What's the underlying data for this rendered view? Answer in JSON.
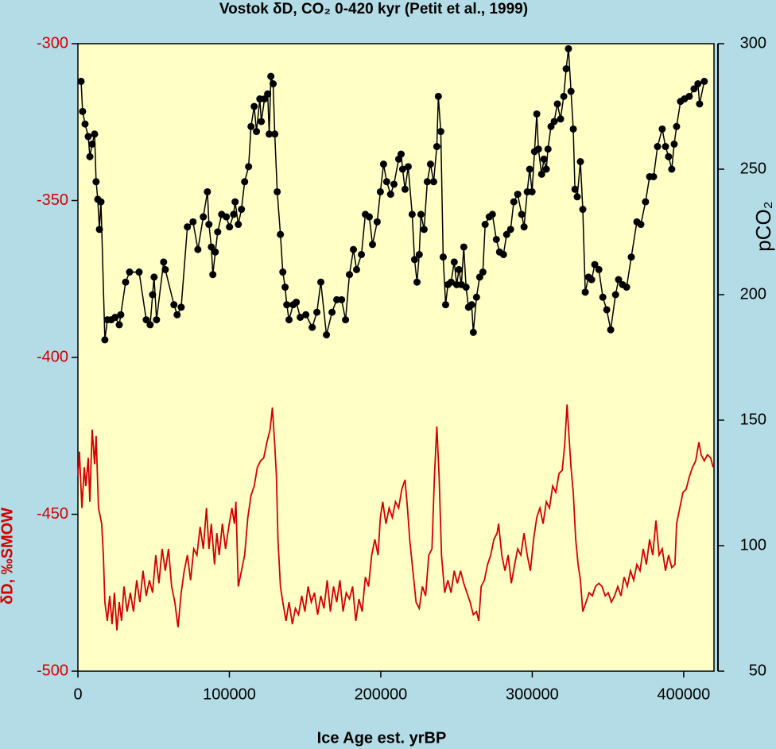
{
  "chart_data": {
    "type": "line",
    "title": "Vostok  δD, CO₂ 0-420 kyr (Petit et al., 1999)",
    "xlabel": "Ice Age est. yrBP",
    "ylabel": "δD, ‰SMOW",
    "y2label": "pCO₂",
    "xlim": [
      0,
      420000
    ],
    "xticks": [
      0,
      100000,
      200000,
      300000,
      400000
    ],
    "ylim": [
      -500,
      -300
    ],
    "yticks": [
      -500,
      -450,
      -400,
      -350,
      -300
    ],
    "y2lim": [
      50,
      300
    ],
    "y2ticks": [
      50,
      100,
      150,
      200,
      250,
      300
    ],
    "series": [
      {
        "color": "#d40000",
        "axis": "y",
        "marker": false,
        "x": [
          0,
          1000,
          2600,
          4200,
          5200,
          6800,
          7900,
          9400,
          11000,
          12000,
          13600,
          15700,
          16800,
          17800,
          19400,
          21000,
          22500,
          24100,
          25700,
          27300,
          28800,
          30400,
          32500,
          34600,
          36700,
          38800,
          40900,
          43000,
          45100,
          47200,
          49300,
          51400,
          53500,
          55600,
          57700,
          59800,
          61900,
          64000,
          66100,
          68200,
          70200,
          72300,
          74400,
          76500,
          78600,
          80700,
          82800,
          84900,
          86500,
          88100,
          90200,
          91700,
          93300,
          95400,
          97500,
          99600,
          101700,
          103300,
          104300,
          105900,
          108000,
          110100,
          112200,
          114300,
          116400,
          118500,
          120600,
          122700,
          124800,
          126900,
          128400,
          130000,
          131100,
          132100,
          133700,
          135300,
          137400,
          139400,
          141600,
          143600,
          145700,
          147800,
          149900,
          152000,
          154100,
          156200,
          158300,
          160400,
          162500,
          164600,
          166700,
          168800,
          170900,
          173000,
          175100,
          177200,
          179300,
          181400,
          183500,
          185600,
          187700,
          189800,
          191900,
          194000,
          196100,
          198200,
          199700,
          201300,
          203400,
          205500,
          207600,
          209700,
          211800,
          213900,
          216000,
          217600,
          219100,
          221200,
          223300,
          225400,
          227500,
          229600,
          231700,
          233800,
          235400,
          237000,
          238500,
          240100,
          242200,
          244300,
          246400,
          248500,
          250600,
          252700,
          254800,
          256900,
          259000,
          261100,
          263200,
          264700,
          266300,
          268400,
          270500,
          272600,
          274700,
          276800,
          277800,
          279900,
          282000,
          284100,
          286200,
          288400,
          290400,
          292500,
          294600,
          296700,
          298800,
          300900,
          303000,
          305100,
          307200,
          309300,
          311400,
          313500,
          315600,
          317700,
          319800,
          321400,
          323000,
          324000,
          325600,
          327100,
          328700,
          330300,
          331800,
          333400,
          335500,
          337600,
          339700,
          341800,
          344000,
          346100,
          348200,
          350200,
          352300,
          354400,
          356500,
          358600,
          360700,
          362800,
          364900,
          367000,
          369100,
          371200,
          373300,
          375400,
          377500,
          379600,
          381700,
          383800,
          385800,
          388000,
          390000,
          392100,
          394200,
          395300,
          397400,
          399500,
          401600,
          403700,
          405800,
          407900,
          410000,
          411500,
          413600,
          415700,
          417800,
          419400
        ],
        "values": [
          -438,
          -430,
          -448,
          -435,
          -441,
          -432,
          -446,
          -423,
          -434,
          -425,
          -448,
          -453,
          -463,
          -478,
          -484,
          -476,
          -485,
          -475,
          -487,
          -478,
          -484,
          -473,
          -481,
          -475,
          -481,
          -471,
          -478,
          -468,
          -476,
          -471,
          -475,
          -463,
          -472,
          -461,
          -468,
          -461,
          -473,
          -478,
          -486,
          -475,
          -468,
          -463,
          -471,
          -461,
          -463,
          -454,
          -461,
          -448,
          -461,
          -453,
          -466,
          -456,
          -463,
          -453,
          -461,
          -454,
          -448,
          -453,
          -446,
          -473,
          -468,
          -463,
          -451,
          -444,
          -441,
          -435,
          -433,
          -432,
          -427,
          -423,
          -416,
          -428,
          -438,
          -458,
          -473,
          -478,
          -484,
          -478,
          -485,
          -480,
          -482,
          -476,
          -481,
          -473,
          -478,
          -475,
          -482,
          -476,
          -480,
          -471,
          -481,
          -473,
          -478,
          -471,
          -481,
          -475,
          -477,
          -473,
          -484,
          -477,
          -481,
          -470,
          -473,
          -463,
          -458,
          -463,
          -451,
          -446,
          -453,
          -448,
          -451,
          -446,
          -448,
          -442,
          -439,
          -448,
          -458,
          -468,
          -478,
          -480,
          -473,
          -476,
          -463,
          -461,
          -438,
          -422,
          -438,
          -463,
          -475,
          -471,
          -475,
          -468,
          -472,
          -468,
          -472,
          -475,
          -478,
          -482,
          -481,
          -484,
          -473,
          -471,
          -466,
          -463,
          -458,
          -456,
          -453,
          -463,
          -468,
          -463,
          -472,
          -466,
          -461,
          -463,
          -456,
          -463,
          -468,
          -458,
          -451,
          -448,
          -453,
          -446,
          -448,
          -441,
          -443,
          -437,
          -436,
          -428,
          -415,
          -423,
          -435,
          -443,
          -458,
          -466,
          -471,
          -481,
          -478,
          -475,
          -476,
          -473,
          -472,
          -473,
          -476,
          -475,
          -478,
          -476,
          -473,
          -476,
          -470,
          -473,
          -468,
          -471,
          -466,
          -468,
          -461,
          -466,
          -458,
          -463,
          -452,
          -463,
          -461,
          -468,
          -463,
          -467,
          -466,
          -453,
          -448,
          -443,
          -442,
          -438,
          -435,
          -433,
          -427,
          -431,
          -433,
          -431,
          -432,
          -435
        ]
      },
      {
        "color": "#000000",
        "axis": "y2",
        "marker": true,
        "x": [
          2100,
          3100,
          4700,
          6800,
          7900,
          9400,
          11000,
          12000,
          13100,
          14200,
          15200,
          17800,
          19400,
          22000,
          24600,
          27300,
          28300,
          31500,
          34100,
          40400,
          45100,
          47700,
          49300,
          50300,
          51900,
          56600,
          57700,
          63400,
          65500,
          68200,
          72300,
          76000,
          79200,
          82800,
          85500,
          86500,
          88100,
          89100,
          90700,
          92300,
          94900,
          98000,
          100100,
          102800,
          103800,
          105900,
          108000,
          110100,
          112700,
          114300,
          116400,
          117900,
          120100,
          121100,
          123200,
          125300,
          126300,
          127400,
          128900,
          130000,
          131600,
          133700,
          135300,
          136800,
          137900,
          139400,
          142100,
          144200,
          146800,
          150500,
          154700,
          157800,
          160400,
          164100,
          167800,
          170900,
          174100,
          176700,
          179300,
          181900,
          184000,
          187200,
          189800,
          192400,
          194500,
          197600,
          199700,
          201800,
          203900,
          206500,
          208700,
          211800,
          213400,
          214400,
          216000,
          218100,
          220700,
          222300,
          223900,
          225400,
          226500,
          228600,
          230700,
          232800,
          234900,
          237000,
          238000,
          239600,
          241200,
          242800,
          244300,
          246400,
          248500,
          250100,
          251600,
          253200,
          254800,
          256300,
          257900,
          260000,
          261100,
          263200,
          265300,
          267400,
          268900,
          271600,
          273700,
          276300,
          278400,
          281000,
          283100,
          285700,
          287800,
          290400,
          293000,
          294600,
          296700,
          298300,
          299900,
          301500,
          303000,
          304100,
          306200,
          307700,
          309300,
          310400,
          312400,
          314500,
          316600,
          318700,
          320800,
          322400,
          323900,
          325600,
          327100,
          328200,
          329700,
          331800,
          333400,
          335000,
          337100,
          339200,
          341300,
          344000,
          346600,
          349200,
          351800,
          355000,
          357000,
          359600,
          362300,
          365400,
          369100,
          371700,
          374800,
          377500,
          380100,
          382700,
          385800,
          388000,
          390000,
          392100,
          393700,
          395300,
          397900,
          400500,
          403700,
          406800,
          409400,
          410500,
          413600
        ],
        "values": [
          285,
          273,
          268,
          263,
          255,
          260,
          264,
          245,
          238,
          226,
          237,
          182,
          190,
          190,
          191,
          188,
          192,
          205,
          209,
          209,
          190,
          188,
          200,
          207,
          190,
          213,
          210,
          196,
          192,
          195,
          227,
          229,
          218,
          231,
          241,
          228,
          219,
          208,
          217,
          225,
          232,
          231,
          227,
          232,
          237,
          228,
          234,
          245,
          251,
          267,
          275,
          265,
          278,
          269,
          278,
          280,
          264,
          287,
          284,
          264,
          241,
          224,
          209,
          203,
          196,
          190,
          196,
          197,
          191,
          192,
          187,
          193,
          205,
          184,
          193,
          198,
          198,
          190,
          208,
          218,
          210,
          216,
          232,
          231,
          220,
          229,
          241,
          252,
          245,
          240,
          244,
          254,
          256,
          250,
          242,
          251,
          232,
          214,
          205,
          216,
          232,
          226,
          245,
          252,
          245,
          259,
          279,
          265,
          215,
          196,
          204,
          205,
          213,
          204,
          210,
          204,
          219,
          203,
          195,
          196,
          185,
          199,
          207,
          209,
          228,
          231,
          232,
          222,
          217,
          216,
          224,
          226,
          237,
          240,
          232,
          227,
          241,
          250,
          241,
          257,
          272,
          258,
          248,
          254,
          250,
          258,
          267,
          269,
          276,
          270,
          279,
          290,
          298,
          281,
          266,
          242,
          239,
          253,
          234,
          201,
          207,
          206,
          212,
          210,
          199,
          194,
          186,
          200,
          206,
          204,
          203,
          215,
          229,
          228,
          237,
          247,
          247,
          259,
          266,
          259,
          255,
          250,
          260,
          267,
          277,
          278,
          279,
          282,
          284,
          276,
          285
        ]
      }
    ]
  }
}
